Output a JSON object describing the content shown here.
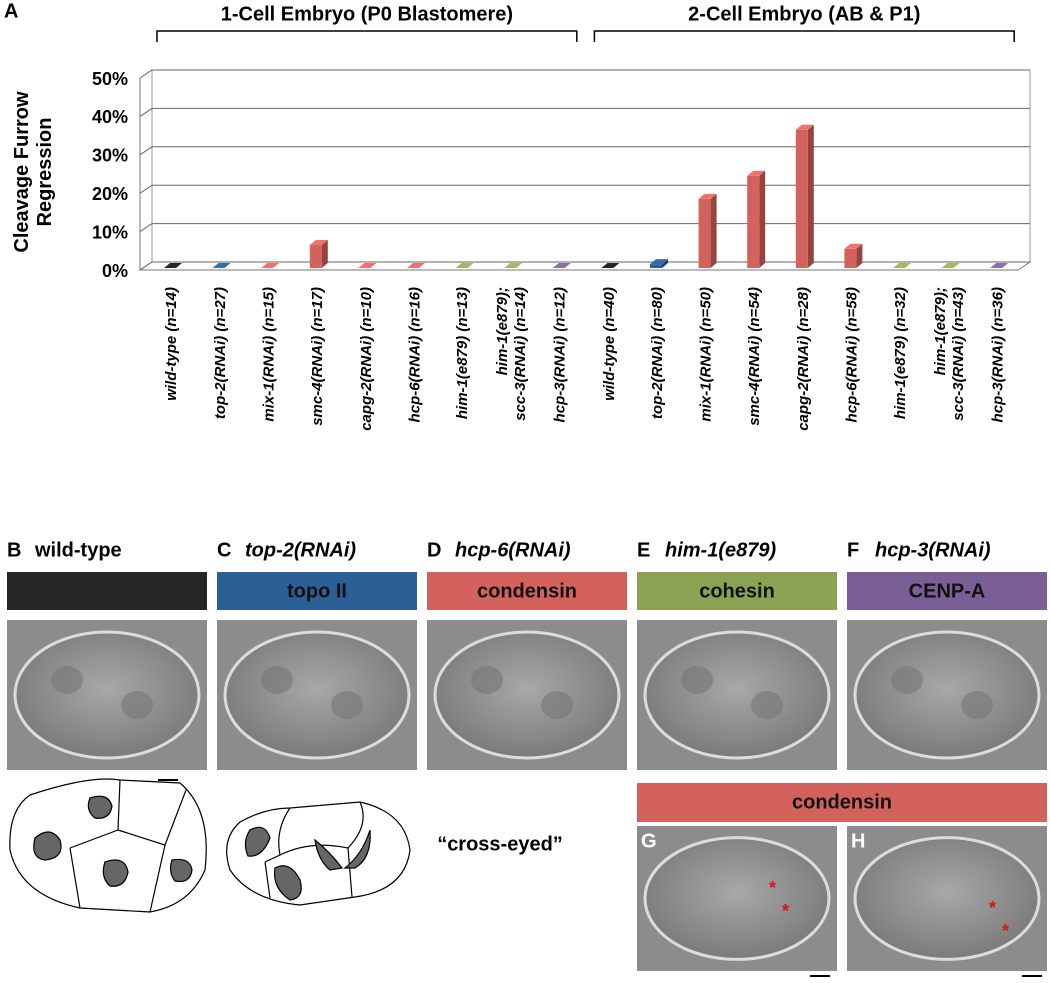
{
  "panel_letter": "A",
  "chart_data": {
    "type": "bar",
    "ylabel": "Cleavage Furrow\nRegression",
    "ylim": [
      0,
      50
    ],
    "yticks": [
      {
        "value": 0,
        "label": "0%"
      },
      {
        "value": 10,
        "label": "10%"
      },
      {
        "value": 20,
        "label": "20%"
      },
      {
        "value": 30,
        "label": "30%"
      },
      {
        "value": 40,
        "label": "40%"
      },
      {
        "value": 50,
        "label": "50%"
      }
    ],
    "grid": true,
    "groups": [
      {
        "label": "1-Cell Embryo (P0 Blastomere)",
        "categories": [
          "wild-type (n=14)",
          "top-2(RNAi) (n=27)",
          "mix-1(RNAi) (n=15)",
          "smc-4(RNAi) (n=17)",
          "capg-2(RNAi) (n=10)",
          "hcp-6(RNAi) (n=16)",
          "him-1(e879) (n=13)",
          "him-1(e879);\nscc-3(RNAi) (n=14)",
          "hcp-3(RNAi) (n=12)"
        ],
        "values": [
          0,
          0,
          0,
          6,
          0,
          0,
          0,
          0,
          0
        ],
        "colors": [
          "#222222",
          "#2b5f95",
          "#d3625c",
          "#d3625c",
          "#d3625c",
          "#d3625c",
          "#8aa353",
          "#8aa353",
          "#7a5f96"
        ]
      },
      {
        "label": "2-Cell Embryo (AB & P1)",
        "categories": [
          "wild-type (n=40)",
          "top-2(RNAi) (n=80)",
          "mix-1(RNAi) (n=50)",
          "smc-4(RNAi) (n=54)",
          "capg-2(RNAi) (n=28)",
          "hcp-6(RNAi) (n=58)",
          "him-1(e879) (n=32)",
          "him-1(e879);\nscc-3(RNAi) (n=43)",
          "hcp-3(RNAi) (n=36)"
        ],
        "values": [
          0,
          1,
          18,
          24,
          36,
          5,
          0,
          0,
          0
        ],
        "colors": [
          "#222222",
          "#2b5f95",
          "#d3625c",
          "#d3625c",
          "#d3625c",
          "#d3625c",
          "#8aa353",
          "#8aa353",
          "#7a5f96"
        ]
      }
    ]
  },
  "panels": [
    {
      "letter": "B",
      "title": "wild-type",
      "color": "#262626"
    },
    {
      "letter": "C",
      "title": "top-2(RNAi)",
      "box": "topo II",
      "color": "#2b5f95"
    },
    {
      "letter": "D",
      "title": "hcp-6(RNAi)",
      "box": "condensin",
      "color": "#d3625c"
    },
    {
      "letter": "E",
      "title": "him-1(e879)",
      "box": "cohesin",
      "color": "#8aa353"
    },
    {
      "letter": "F",
      "title": "hcp-3(RNAi)",
      "box": "CENP-A",
      "color": "#7a5f96"
    }
  ],
  "annotation": "“cross-eyed”",
  "condensin_bar": {
    "label": "condensin",
    "color": "#d3625c"
  },
  "sub_panels": [
    {
      "letter": "G",
      "markers": [
        "*",
        "*"
      ]
    },
    {
      "letter": "H",
      "markers": [
        "*",
        "*"
      ]
    }
  ]
}
